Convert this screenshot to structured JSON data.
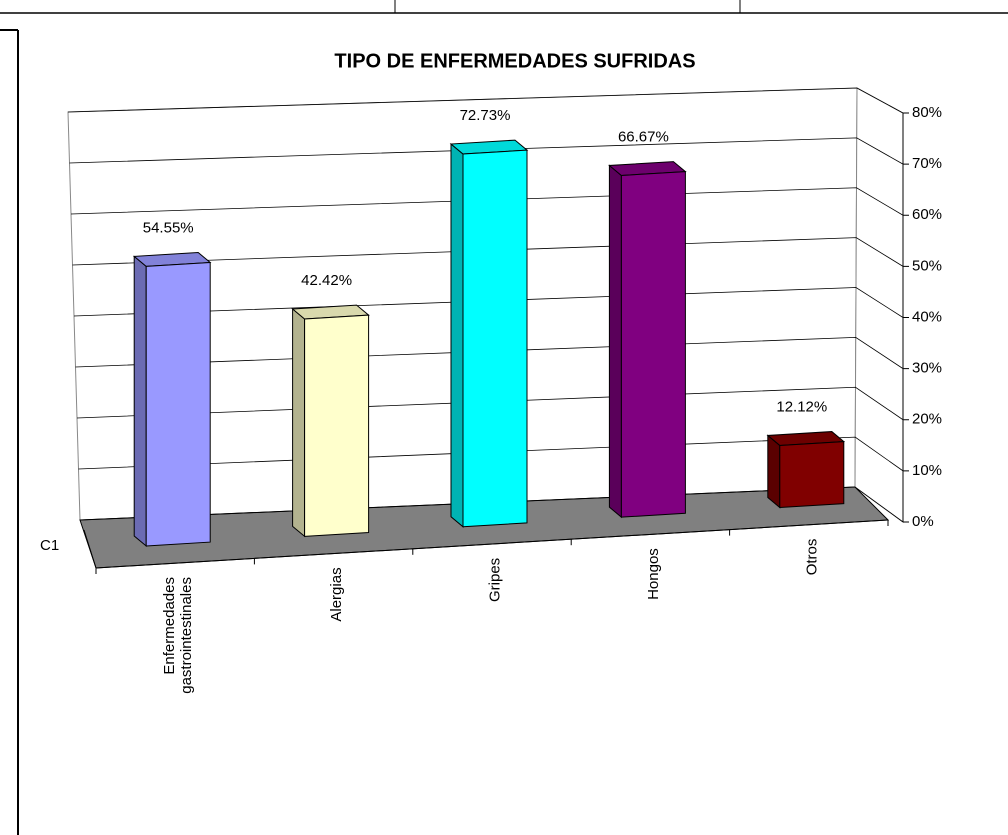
{
  "chart_data": {
    "type": "bar3d",
    "title": "TIPO DE ENFERMEDADES SUFRIDAS",
    "depth_label": "C1",
    "categories": [
      "Enfermedades gastrointestinales",
      "Alergias",
      "Gripes",
      "Hongos",
      "Otros"
    ],
    "values": [
      54.55,
      42.42,
      72.73,
      66.67,
      12.12
    ],
    "value_labels": [
      "54.55%",
      "42.42%",
      "72.73%",
      "66.67%",
      "12.12%"
    ],
    "colors": [
      "#9999ff",
      "#ffffcc",
      "#00ffff",
      "#800080",
      "#800000"
    ],
    "ylim": [
      0,
      80
    ],
    "yticks": [
      {
        "value": 0,
        "label": "0%"
      },
      {
        "value": 10,
        "label": "10%"
      },
      {
        "value": 20,
        "label": "20%"
      },
      {
        "value": 30,
        "label": "30%"
      },
      {
        "value": 40,
        "label": "40%"
      },
      {
        "value": 50,
        "label": "50%"
      },
      {
        "value": 60,
        "label": "60%"
      },
      {
        "value": 70,
        "label": "70%"
      },
      {
        "value": 80,
        "label": "80%"
      }
    ],
    "grid": true
  }
}
